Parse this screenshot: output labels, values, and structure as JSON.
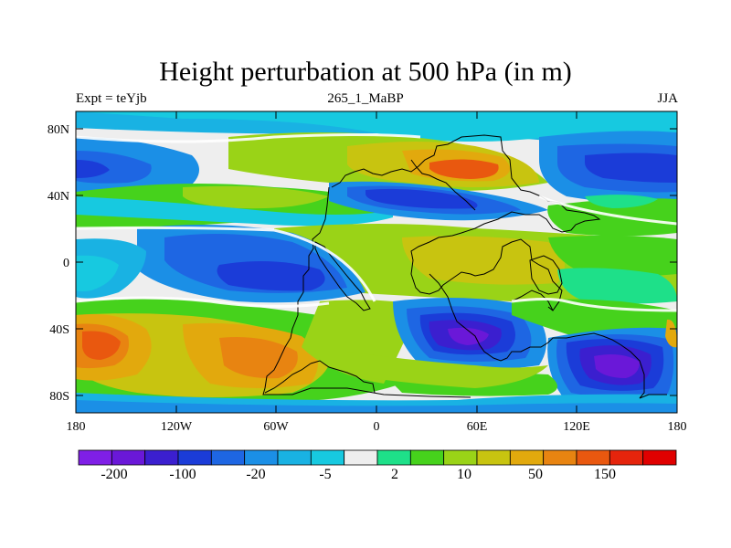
{
  "title": "Height perturbation at 500 hPa (in m)",
  "subtitle_left": "Expt = teYjb",
  "subtitle_center": "265_1_MaBP",
  "subtitle_right": "JJA",
  "lat_ticks": [
    "80N",
    "40N",
    "0",
    "40S",
    "80S"
  ],
  "lon_ticks": [
    "180",
    "120W",
    "60W",
    "0",
    "60E",
    "120E",
    "180"
  ],
  "colorbar": {
    "colors": [
      "#7f1fe6",
      "#6a18d8",
      "#3b1fcf",
      "#1b3cd8",
      "#1e66e3",
      "#1b8fe6",
      "#19b2e3",
      "#17c9e0",
      "#eeeeee",
      "#1ee089",
      "#46d21c",
      "#9ad317",
      "#c8c410",
      "#e2a90d",
      "#e88411",
      "#e9580f",
      "#e5240c",
      "#e00000"
    ],
    "labels": [
      "-200",
      "-100",
      "-20",
      "-5",
      "2",
      "10",
      "50",
      "150"
    ]
  }
}
